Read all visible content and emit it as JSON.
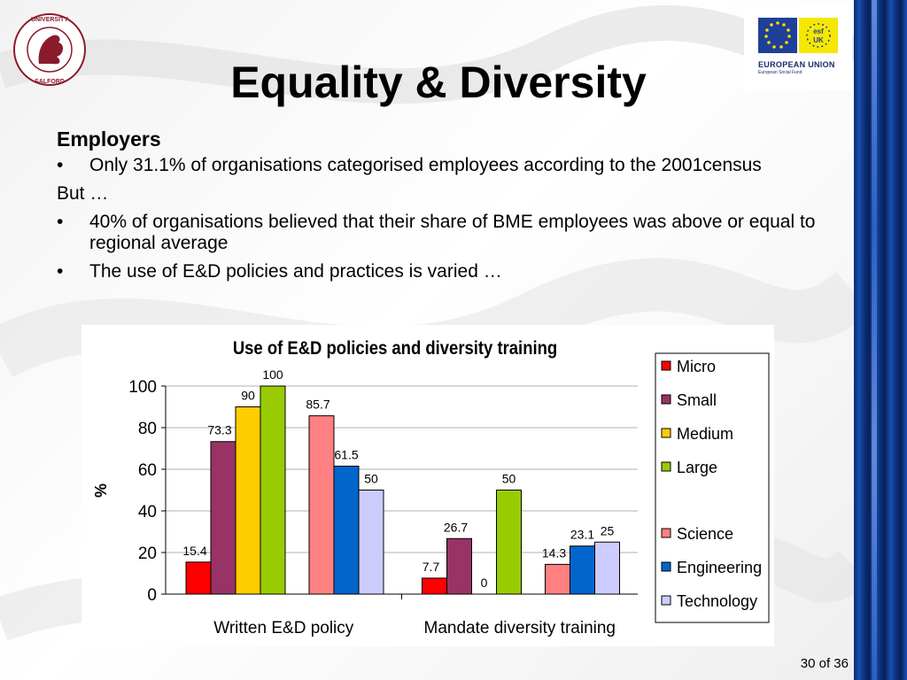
{
  "slide": {
    "title": "Equality & Diversity",
    "heading": "Employers",
    "bullets": [
      "Only 31.1% of  organisations categorised employees according to the 2001census",
      "40% of organisations believed that their share of BME employees was above or equal to regional average",
      "The use of E&D policies and practices is varied …"
    ],
    "but_text": "But …",
    "bullet_char": "•",
    "page_number": "30 of 36"
  },
  "logos": {
    "university_icon": "university-of-salford-crest",
    "eu_caption": "EUROPEAN UNION",
    "eu_subcaption": "European Social Fund",
    "eu_flag_color": "#1f3f99",
    "esf_color": "#f5e800"
  },
  "chart_data": {
    "type": "bar",
    "title": "Use of E&D policies and diversity training",
    "ylabel": "%",
    "xlabel": "",
    "ylim": [
      0,
      100
    ],
    "yticks": [
      "0",
      "20",
      "40",
      "60",
      "80",
      "100"
    ],
    "grid": true,
    "legend_position": "right",
    "categories": [
      "Written E&D policy",
      "Mandate diversity training"
    ],
    "series": [
      {
        "name": "Micro",
        "color": "#ff0000",
        "values": [
          15.4,
          7.7
        ],
        "labels": [
          "15.4",
          "7.7"
        ]
      },
      {
        "name": "Small",
        "color": "#993366",
        "values": [
          73.3,
          26.7
        ],
        "labels": [
          "73.3",
          "26.7"
        ]
      },
      {
        "name": "Medium",
        "color": "#ffcc00",
        "values": [
          90,
          0
        ],
        "labels": [
          "90",
          "0"
        ]
      },
      {
        "name": "Large",
        "color": "#99cc00",
        "values": [
          100,
          50
        ],
        "labels": [
          "100",
          "50"
        ]
      },
      {
        "name": "Science",
        "color": "#ff8080",
        "values": [
          85.7,
          14.3
        ],
        "labels": [
          "85.7",
          "14.3"
        ]
      },
      {
        "name": "Engineering",
        "color": "#0066cc",
        "values": [
          61.5,
          23.1
        ],
        "labels": [
          "61.5",
          "23.1"
        ]
      },
      {
        "name": "Technology",
        "color": "#ccccff",
        "values": [
          50,
          25
        ],
        "labels": [
          "50",
          "25"
        ]
      }
    ]
  }
}
